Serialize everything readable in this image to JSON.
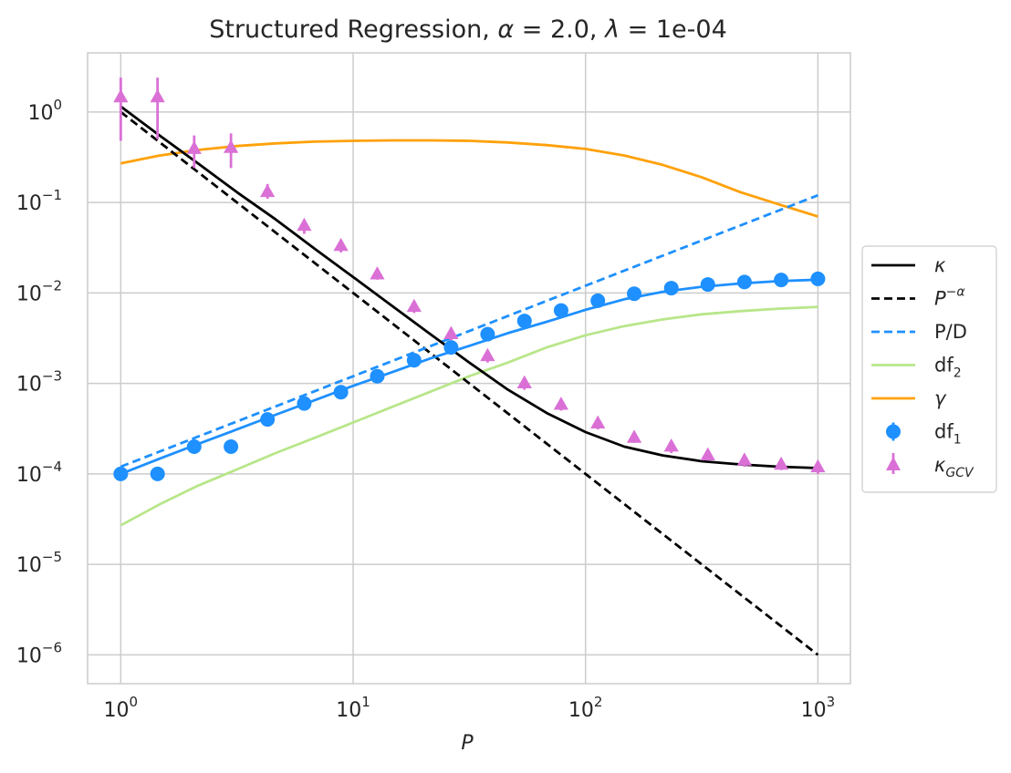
{
  "chart_data": {
    "type": "line",
    "title": "Structured Regression, α = 2.0, λ = 1e-04",
    "title_parts": {
      "prefix": "Structured Regression, ",
      "alpha_sym": "α",
      "alpha_eq": " = 2.0, ",
      "lambda_sym": "λ",
      "lambda_eq": " = 1e-04"
    },
    "xlabel": "P",
    "ylabel": "",
    "xscale": "log",
    "yscale": "log",
    "xlim": [
      0.72,
      1380
    ],
    "ylim": [
      4.8e-07,
      4.5
    ],
    "grid": true,
    "legend_position": "center-right",
    "x_ticks": [
      {
        "value": 1,
        "base": "10",
        "exp": "0"
      },
      {
        "value": 10,
        "base": "10",
        "exp": "1"
      },
      {
        "value": 100,
        "base": "10",
        "exp": "2"
      },
      {
        "value": 1000,
        "base": "10",
        "exp": "3"
      }
    ],
    "y_ticks": [
      {
        "value": 1,
        "base": "10",
        "exp": "0"
      },
      {
        "value": 0.1,
        "base": "10",
        "exp": "−1"
      },
      {
        "value": 0.01,
        "base": "10",
        "exp": "−2"
      },
      {
        "value": 0.001,
        "base": "10",
        "exp": "−3"
      },
      {
        "value": 0.0001,
        "base": "10",
        "exp": "−4"
      },
      {
        "value": 1e-05,
        "base": "10",
        "exp": "−5"
      },
      {
        "value": 1e-06,
        "base": "10",
        "exp": "−6"
      }
    ],
    "series": [
      {
        "name": "kappa",
        "label_main": "κ",
        "label_sub": "",
        "label_sup": "",
        "italic": true,
        "style": "solid",
        "color": "#000000",
        "x": [
          1,
          1.47,
          2.15,
          3.16,
          4.64,
          6.81,
          10,
          14.7,
          21.5,
          31.6,
          46.4,
          68.1,
          100,
          147,
          215,
          316,
          464,
          681,
          1000
        ],
        "y": [
          1.15,
          0.55,
          0.27,
          0.13,
          0.065,
          0.031,
          0.015,
          0.0072,
          0.0035,
          0.0017,
          0.00085,
          0.00047,
          0.00029,
          0.0002,
          0.00016,
          0.000138,
          0.000127,
          0.00012,
          0.000116
        ]
      },
      {
        "name": "power-law",
        "label_main": "P",
        "label_sub": "",
        "label_sup": "−α",
        "italic": true,
        "style": "dashed",
        "color": "#000000",
        "x": [
          1,
          1000
        ],
        "y": [
          1.0,
          1e-06
        ]
      },
      {
        "name": "P/D",
        "label_main": "P/D",
        "label_sub": "",
        "label_sup": "",
        "italic": false,
        "style": "dashed",
        "color": "#1e90ff",
        "x": [
          1,
          1000
        ],
        "y": [
          0.00012,
          0.12
        ]
      },
      {
        "name": "df2",
        "label_main": "df",
        "label_sub": "2",
        "label_sup": "",
        "italic": false,
        "style": "solid",
        "color": "#b8e68a",
        "x": [
          1,
          1.47,
          2.15,
          3.16,
          4.64,
          6.81,
          10,
          14.7,
          21.5,
          31.6,
          46.4,
          68.1,
          100,
          147,
          215,
          316,
          464,
          681,
          1000
        ],
        "y": [
          2.7e-05,
          4.6e-05,
          7.4e-05,
          0.000112,
          0.00017,
          0.00025,
          0.00037,
          0.00055,
          0.00081,
          0.0012,
          0.0017,
          0.0025,
          0.0034,
          0.0043,
          0.0051,
          0.0058,
          0.0063,
          0.0067,
          0.007
        ]
      },
      {
        "name": "gamma",
        "label_main": "γ",
        "label_sub": "",
        "label_sup": "",
        "italic": true,
        "style": "solid",
        "color": "#ffa10a",
        "x": [
          1,
          1.47,
          2.15,
          3.16,
          4.64,
          6.81,
          10,
          14.7,
          21.5,
          31.6,
          46.4,
          68.1,
          100,
          147,
          215,
          316,
          464,
          681,
          1000
        ],
        "y": [
          0.27,
          0.33,
          0.38,
          0.42,
          0.45,
          0.47,
          0.48,
          0.485,
          0.485,
          0.48,
          0.46,
          0.43,
          0.39,
          0.33,
          0.26,
          0.19,
          0.13,
          0.095,
          0.07
        ]
      },
      {
        "name": "df1-fit",
        "legend": false,
        "style": "solid",
        "color": "#1e90ff",
        "x": [
          1,
          1.47,
          2.15,
          3.16,
          4.64,
          6.81,
          10,
          14.7,
          21.5,
          31.6,
          46.4,
          68.1,
          100,
          147,
          215,
          316,
          464,
          681,
          1000
        ],
        "y": [
          0.0001,
          0.000147,
          0.000214,
          0.00031,
          0.00045,
          0.00065,
          0.00094,
          0.00133,
          0.00189,
          0.0026,
          0.0036,
          0.0048,
          0.0065,
          0.0085,
          0.0103,
          0.0117,
          0.0127,
          0.0135,
          0.014
        ]
      },
      {
        "name": "df1",
        "label_main": "df",
        "label_sub": "1",
        "label_sup": "",
        "italic": false,
        "style": "markers-circle",
        "color": "#1e90ff",
        "x": [
          1,
          1.44,
          2.07,
          2.98,
          4.28,
          6.16,
          8.86,
          12.7,
          18.3,
          26.4,
          37.9,
          54.6,
          78.5,
          113,
          162,
          234,
          336,
          483,
          695,
          1000
        ],
        "y": [
          0.0001,
          0.0001,
          0.0002,
          0.0002,
          0.0004,
          0.0006,
          0.0008,
          0.0012,
          0.0018,
          0.0025,
          0.0035,
          0.0049,
          0.0064,
          0.0082,
          0.0098,
          0.0113,
          0.0124,
          0.0132,
          0.0139,
          0.0143
        ]
      },
      {
        "name": "kappa-gcv",
        "label_main": "κ",
        "label_sub": "GCV",
        "label_sup": "",
        "italic": true,
        "style": "markers-triangle",
        "color": "#da70d6",
        "x": [
          1,
          1.44,
          2.07,
          2.98,
          4.28,
          6.16,
          8.86,
          12.7,
          18.3,
          26.4,
          37.9,
          54.6,
          78.5,
          113,
          162,
          234,
          336,
          483,
          695,
          1000
        ],
        "y": [
          1.45,
          1.45,
          0.39,
          0.4,
          0.13,
          0.055,
          0.033,
          0.016,
          0.007,
          0.0035,
          0.002,
          0.001,
          0.00058,
          0.00036,
          0.00025,
          0.0002,
          0.00016,
          0.00014,
          0.000126,
          0.000118
        ],
        "err_low": [
          0.48,
          0.5,
          0.24,
          0.24,
          0.11,
          0.045,
          0.028,
          0.014,
          0.006,
          0.003,
          0.0017,
          0.00085,
          0.0005,
          0.00031,
          0.00022,
          0.00017,
          0.00014,
          0.00012,
          0.00011,
          0.0001
        ],
        "err_high": [
          2.4,
          2.4,
          0.55,
          0.58,
          0.16,
          0.065,
          0.038,
          0.018,
          0.0081,
          0.0041,
          0.0023,
          0.00115,
          0.00066,
          0.00041,
          0.00028,
          0.00023,
          0.00018,
          0.00016,
          0.000142,
          0.000135
        ]
      }
    ]
  }
}
